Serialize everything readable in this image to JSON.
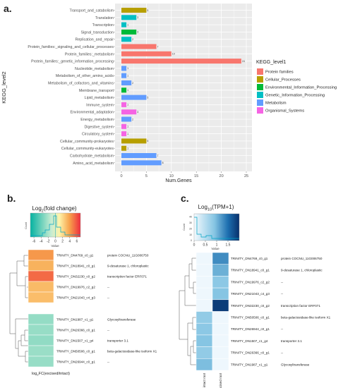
{
  "panels": {
    "a_label": "a.",
    "b_label": "b.",
    "c_label": "c."
  },
  "chart_data": [
    {
      "type": "bar",
      "panel": "a",
      "orientation": "horizontal",
      "xlabel": "Num.Genes",
      "ylabel": "KEGG_level2",
      "xlim": [
        0,
        25
      ],
      "xticks": [
        0,
        5,
        10,
        15,
        20,
        25
      ],
      "categories": [
        "Transport_and_catabolism",
        "Translation",
        "Transcription",
        "Signal_transduction",
        "Replication_and_repair",
        "Protein_families:_signaling_and_cellular_processes",
        "Protein_families:_metabolism",
        "Protein_families:_genetic_information_processing",
        "Nucleotide_metabolism",
        "Metabolism_of_other_amino_acids",
        "Metabolism_of_cofactors_and_vitamins",
        "Membrane_transport",
        "Lipid_metabolism",
        "Immune_system",
        "Environmental_adaptation",
        "Energy_metabolism",
        "Digestive_system",
        "Circulatory_system",
        "Cellular_community-prokaryotes",
        "Cellular_community-eukaryotes",
        "Carbohydrate_metabolism",
        "Amino_acid_metabolism"
      ],
      "values": [
        5,
        3,
        1,
        3,
        2,
        7,
        10,
        24,
        1,
        1,
        2,
        1,
        5,
        1,
        3,
        2,
        1,
        1,
        5,
        1,
        7,
        8
      ],
      "groups": [
        "Cellular_Processes",
        "Genetic_Information_Processing",
        "Genetic_Information_Processing",
        "Environmental_Information_Processing",
        "Genetic_Information_Processing",
        "Protein families",
        "Protein families",
        "Protein families",
        "Metabolism",
        "Metabolism",
        "Metabolism",
        "Environmental_Information_Processing",
        "Metabolism",
        "Organismal_Systems",
        "Organismal_Systems",
        "Metabolism",
        "Organismal_Systems",
        "Organismal_Systems",
        "Cellular_Processes",
        "Cellular_Processes",
        "Metabolism",
        "Metabolism"
      ],
      "legend_title": "KEGG_level1",
      "legend_position": "right",
      "legend": [
        {
          "name": "Protein families",
          "color": "#f8766d"
        },
        {
          "name": "Cellular_Processes",
          "color": "#b79f00"
        },
        {
          "name": "Environmental_Information_Processing",
          "color": "#00ba38"
        },
        {
          "name": "Genetic_Information_Processing",
          "color": "#00bfc4"
        },
        {
          "name": "Metabolism",
          "color": "#619cff"
        },
        {
          "name": "Organismal_Systems",
          "color": "#f564e3"
        }
      ],
      "grid": true
    },
    {
      "type": "heatmap",
      "panel": "b",
      "title_base": "Log",
      "title_sub": "2",
      "title_rest": "(fold change)",
      "key_xlabel": "Value",
      "key_ylabel": "Count",
      "key_ticks": [
        "-6",
        "-4",
        "-2",
        "0",
        "2",
        "4",
        "6"
      ],
      "key_range": [
        -7,
        7
      ],
      "xlabel_base": "log",
      "xlabel_sub": "2",
      "xlabel_rest": "FC(excised/intact)",
      "rows": [
        {
          "id": "TRINITY_DN4769_c0_g1",
          "annotation": "protein COCNU_11G006750",
          "value": 4.2
        },
        {
          "id": "TRINITY_DN18941_c0_g1",
          "annotation": "9-desaturase 1, chloroplastic",
          "value": 3.4
        },
        {
          "id": "TRINITY_DN32230_c0_g2",
          "annotation": "transcription factor ERF071",
          "value": 5.4
        },
        {
          "id": "TRINITY_DN19976_c2_g2",
          "annotation": "--",
          "value": 3.1
        },
        {
          "id": "TRINITY_DN21043_c4_g3",
          "annotation": "--",
          "value": 3.0
        },
        {
          "id": "TRINITY_DN1987_c1_g1",
          "annotation": "Glycosyltransferase",
          "value": -2.7
        },
        {
          "id": "TRINITY_DN26366_c0_g1",
          "annotation": "--",
          "value": -2.6
        },
        {
          "id": "TRINITY_DN1507_c1_g4",
          "annotation": "transporter 3.1",
          "value": -2.8
        },
        {
          "id": "TRINITY_DN50506_c0_g1",
          "annotation": "beta-galactosidase-like isoform X1",
          "value": -2.5
        },
        {
          "id": "TRINITY_DN26944_c0_g1",
          "annotation": "--",
          "value": -2.6
        }
      ]
    },
    {
      "type": "heatmap",
      "panel": "c",
      "title_base": "Log",
      "title_sub": "10",
      "title_rest": "(TPM+1)",
      "key_xlabel": "Value",
      "key_ylabel": "Count",
      "key_ticks": [
        "0",
        "0.5",
        "1",
        "1.5"
      ],
      "key_range": [
        0,
        2
      ],
      "key_yticks": [
        "0",
        "10",
        "20",
        "30",
        "40"
      ],
      "columns": [
        "intact root",
        "excised root"
      ],
      "rows": [
        {
          "id": "TRINITY_DN4769_c0_g1",
          "annotation": "protein COCNU_11G006750",
          "values": [
            0.05,
            1.3
          ]
        },
        {
          "id": "TRINITY_DN18941_c0_g1",
          "annotation": "9-desaturase 1, chloroplastic",
          "values": [
            0.05,
            1.05
          ]
        },
        {
          "id": "TRINITY_DN19976_c2_g2",
          "annotation": "--",
          "values": [
            0.05,
            0.85
          ]
        },
        {
          "id": "TRINITY_DN21043_c4_g3",
          "annotation": "--",
          "values": [
            0.05,
            0.9
          ]
        },
        {
          "id": "TRINITY_DN32230_c0_g2",
          "annotation": "transcription factor ERF071",
          "values": [
            0.05,
            1.9
          ]
        },
        {
          "id": "TRINITY_DN50506_c0_g1",
          "annotation": "beta-galactosidase-like isoform X1",
          "values": [
            0.8,
            0.05
          ]
        },
        {
          "id": "TRINITY_DN26944_c0_g1",
          "annotation": "--",
          "values": [
            0.85,
            0.05
          ]
        },
        {
          "id": "TRINITY_DN1507_c1_g4",
          "annotation": "transporter 3.1",
          "values": [
            0.9,
            0.05
          ]
        },
        {
          "id": "TRINITY_DN26366_c0_g1",
          "annotation": "--",
          "values": [
            0.8,
            0.05
          ]
        },
        {
          "id": "TRINITY_DN1987_c1_g1",
          "annotation": "Glycosyltransferase",
          "values": [
            0.95,
            0.05
          ]
        }
      ]
    }
  ]
}
